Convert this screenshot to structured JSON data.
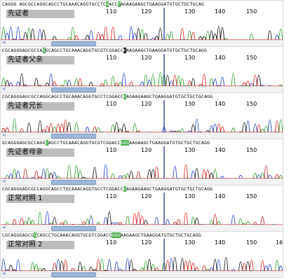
{
  "panels": [
    {
      "label": "先证者",
      "seq_pre": "CAGGG AGCGCCAGGCAGCCTGCAAACAGGTGCCTC",
      "seq_hl1": "G",
      "seq_mid": "ACC",
      "seq_hl2": "T",
      "seq_post": "AGAAGAAGCTGAAGGATGTGCTGCTGCAG",
      "ticks": [
        "110",
        "120",
        "130",
        "140",
        "150"
      ]
    },
    {
      "label": "先证者父亲",
      "seq_pre": "CGCAGGGAGCGCCA",
      "seq_hl1": "G",
      "seq_mid": "GCAGCCTGCAAACAGGTGCGTCGGACC",
      "seq_hl2": "K",
      "seq_post": "AAGAAGCTGAAGGATGTGCTGCTGCAGG",
      "ticks": [
        "110",
        "120",
        "130",
        "140",
        "150"
      ]
    },
    {
      "label": "先证者兄长",
      "seq_pre": "CGCAGGGAGCGCCAGGCAGCCTGCAAACAGGTGCCTCGGACC",
      "seq_hl1": "G",
      "seq_mid": "",
      "seq_hl2": "",
      "seq_post": "AGAAGAAGCTGAAGGATGTGCTGCTGCAGG",
      "ticks": [
        "110",
        "120",
        "130",
        "140",
        "150"
      ]
    },
    {
      "label": "先证者母亲",
      "seq_pre": "GCAGGGAGCGCCAGG",
      "seq_hl1": "C",
      "seq_mid": "AGCCTGCAAACAGGTGCGTCGGACC",
      "seq_hl2": "GAG",
      "seq_post": "AAGAAGCTGAAGGATGTGCTGCTGCAGG",
      "ticks": [
        "110",
        "120",
        "130",
        "140",
        "150"
      ]
    },
    {
      "label": "正常对照 1",
      "seq_pre": "CGCAGGGAGCGCCAGGCAGCCTGCAAACAGGTGCCTCGGACC",
      "seq_hl1": "G",
      "seq_mid": "",
      "seq_hl2": "",
      "seq_post": "AGAAGAAGCTGAAGGATGTGCTGCTGCAGG",
      "ticks": [
        "110",
        "120",
        "130",
        "140",
        "150"
      ]
    },
    {
      "label": "正常对照 2",
      "seq_pre": "CGCAGGGAGCG",
      "seq_hl1": "G",
      "seq_mid": "CAGCCTGCAAACAGGTGCGTCGGACC",
      "seq_hl2": "GAG",
      "seq_post": "AAGAAGCTGAAGGATGTGCTGCTGCAGG",
      "ticks": [
        "110",
        "120",
        "130",
        "140",
        "150",
        "160"
      ]
    }
  ],
  "trace_colors": {
    "A": "#2e9e2e",
    "C": "#2244cc",
    "G": "#111111",
    "T": "#d62020"
  },
  "scroll_arrow": "<"
}
